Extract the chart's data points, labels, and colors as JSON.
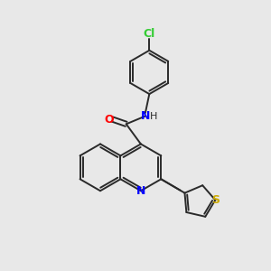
{
  "background_color": "#e8e8e8",
  "bond_color": "#2a2a2a",
  "nitrogen_color": "#0000ff",
  "oxygen_color": "#ff0000",
  "sulfur_color": "#ccaa00",
  "chlorine_color": "#33cc33",
  "figsize": [
    3.0,
    3.0
  ],
  "dpi": 100,
  "xlim": [
    0,
    10
  ],
  "ylim": [
    0,
    10
  ]
}
